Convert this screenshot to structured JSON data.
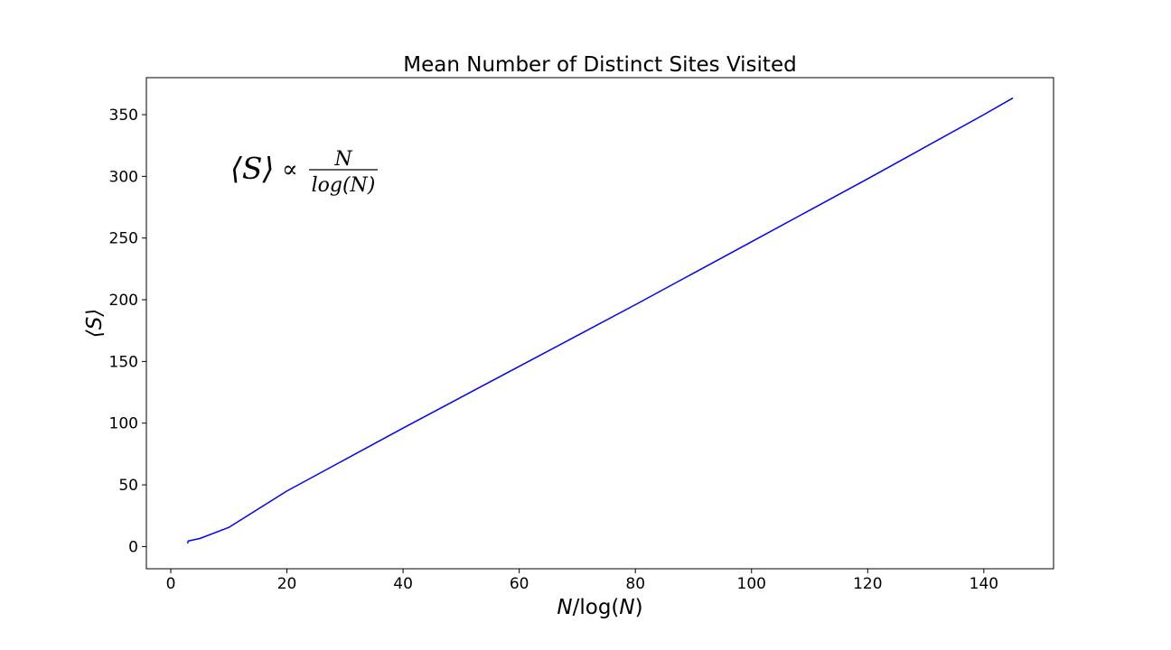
{
  "chart_data": {
    "type": "line",
    "title": "Mean Number of Distinct Sites Visited",
    "xlabel": {
      "main": "N",
      "rest": "/log(",
      "main2": "N",
      "close": ")"
    },
    "ylabel": "⟨S⟩",
    "xlim": [
      -4.2,
      152
    ],
    "ylim": [
      -18,
      380
    ],
    "xticks": [
      0,
      20,
      40,
      60,
      80,
      100,
      120,
      140
    ],
    "yticks": [
      0,
      50,
      100,
      150,
      200,
      250,
      300,
      350
    ],
    "grid": false,
    "legend": "none",
    "annotation": {
      "lhs": "⟨S⟩",
      "relation": "∝",
      "numerator": "N",
      "denominator": "log(N)"
    },
    "series": [
      {
        "color": "#0000ff",
        "x": [
          2.9,
          3.0,
          5,
          10,
          20,
          40,
          60,
          80,
          100,
          120,
          140,
          145
        ],
        "y": [
          2.5,
          4.5,
          6.5,
          15.5,
          45,
          96,
          146,
          196,
          247,
          298,
          350,
          363.5
        ]
      }
    ]
  }
}
